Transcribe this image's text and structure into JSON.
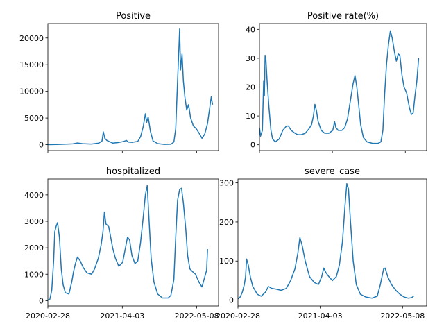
{
  "chart_data": [
    {
      "type": "line",
      "title": "Positive",
      "xlabel": "",
      "ylabel": "",
      "x_range": [
        "2020-02-28",
        "2022-09-02"
      ],
      "x_ticks": [],
      "ylim": [
        -1100,
        22700
      ],
      "y_ticks": [
        0,
        5000,
        10000,
        15000,
        20000
      ],
      "grid": false,
      "points": [
        [
          "2020-02-28",
          0
        ],
        [
          "2020-04-15",
          30
        ],
        [
          "2020-05-25",
          80
        ],
        [
          "2020-07-10",
          150
        ],
        [
          "2020-08-05",
          320
        ],
        [
          "2020-09-01",
          180
        ],
        [
          "2020-10-20",
          120
        ],
        [
          "2020-11-28",
          300
        ],
        [
          "2020-12-15",
          700
        ],
        [
          "2020-12-22",
          2400
        ],
        [
          "2020-12-30",
          1200
        ],
        [
          "2021-01-10",
          800
        ],
        [
          "2021-02-10",
          300
        ],
        [
          "2021-03-10",
          400
        ],
        [
          "2021-04-10",
          600
        ],
        [
          "2021-04-25",
          800
        ],
        [
          "2021-05-05",
          500
        ],
        [
          "2021-05-25",
          450
        ],
        [
          "2021-06-25",
          600
        ],
        [
          "2021-07-10",
          1500
        ],
        [
          "2021-07-25",
          3500
        ],
        [
          "2021-08-05",
          5800
        ],
        [
          "2021-08-12",
          4200
        ],
        [
          "2021-08-20",
          5200
        ],
        [
          "2021-09-01",
          2500
        ],
        [
          "2021-09-15",
          700
        ],
        [
          "2021-10-10",
          200
        ],
        [
          "2021-11-15",
          50
        ],
        [
          "2021-12-20",
          80
        ],
        [
          "2022-01-05",
          500
        ],
        [
          "2022-01-15",
          3000
        ],
        [
          "2022-01-25",
          12000
        ],
        [
          "2022-02-01",
          18000
        ],
        [
          "2022-02-05",
          21700
        ],
        [
          "2022-02-10",
          14000
        ],
        [
          "2022-02-18",
          17000
        ],
        [
          "2022-02-25",
          12000
        ],
        [
          "2022-03-05",
          9000
        ],
        [
          "2022-03-15",
          6500
        ],
        [
          "2022-03-25",
          7500
        ],
        [
          "2022-04-05",
          5000
        ],
        [
          "2022-04-20",
          3500
        ],
        [
          "2022-05-05",
          3000
        ],
        [
          "2022-05-20",
          2200
        ],
        [
          "2022-06-05",
          1200
        ],
        [
          "2022-06-20",
          2000
        ],
        [
          "2022-07-05",
          4000
        ],
        [
          "2022-07-15",
          6500
        ],
        [
          "2022-07-25",
          9000
        ],
        [
          "2022-08-01",
          7500
        ]
      ]
    },
    {
      "type": "line",
      "title": "Positive rate(%)",
      "xlabel": "",
      "ylabel": "",
      "x_range": [
        "2020-02-28",
        "2022-09-02"
      ],
      "x_ticks": [],
      "ylim": [
        -2,
        42
      ],
      "y_ticks": [
        0,
        10,
        20,
        30,
        40
      ],
      "grid": false,
      "points": [
        [
          "2020-02-28",
          6
        ],
        [
          "2020-03-05",
          3
        ],
        [
          "2020-03-15",
          5
        ],
        [
          "2020-03-22",
          22
        ],
        [
          "2020-03-26",
          17
        ],
        [
          "2020-03-30",
          31
        ],
        [
          "2020-04-03",
          30
        ],
        [
          "2020-04-10",
          22
        ],
        [
          "2020-04-20",
          13
        ],
        [
          "2020-05-01",
          5
        ],
        [
          "2020-05-10",
          2
        ],
        [
          "2020-05-25",
          1
        ],
        [
          "2020-06-15",
          2
        ],
        [
          "2020-07-05",
          5
        ],
        [
          "2020-07-25",
          6.5
        ],
        [
          "2020-08-05",
          6.5
        ],
        [
          "2020-08-20",
          5
        ],
        [
          "2020-09-10",
          4
        ],
        [
          "2020-09-25",
          3.5
        ],
        [
          "2020-10-15",
          3.5
        ],
        [
          "2020-11-05",
          4
        ],
        [
          "2020-11-25",
          5.5
        ],
        [
          "2020-12-10",
          7
        ],
        [
          "2020-12-20",
          10
        ],
        [
          "2020-12-28",
          14
        ],
        [
          "2021-01-05",
          12
        ],
        [
          "2021-01-15",
          8
        ],
        [
          "2021-02-01",
          5
        ],
        [
          "2021-02-20",
          4
        ],
        [
          "2021-03-15",
          4
        ],
        [
          "2021-04-05",
          5
        ],
        [
          "2021-04-15",
          8
        ],
        [
          "2021-04-22",
          6
        ],
        [
          "2021-05-05",
          5
        ],
        [
          "2021-05-25",
          5
        ],
        [
          "2021-06-10",
          6
        ],
        [
          "2021-06-25",
          9
        ],
        [
          "2021-07-10",
          15
        ],
        [
          "2021-07-25",
          21
        ],
        [
          "2021-08-05",
          24
        ],
        [
          "2021-08-15",
          20
        ],
        [
          "2021-08-25",
          14
        ],
        [
          "2021-09-05",
          7
        ],
        [
          "2021-09-20",
          2.5
        ],
        [
          "2021-10-10",
          1
        ],
        [
          "2021-11-10",
          0.5
        ],
        [
          "2021-12-10",
          0.5
        ],
        [
          "2021-12-25",
          1
        ],
        [
          "2022-01-05",
          5
        ],
        [
          "2022-01-15",
          18
        ],
        [
          "2022-01-25",
          28
        ],
        [
          "2022-02-05",
          35
        ],
        [
          "2022-02-15",
          39.5
        ],
        [
          "2022-02-25",
          37
        ],
        [
          "2022-03-10",
          32
        ],
        [
          "2022-03-20",
          29
        ],
        [
          "2022-03-30",
          31.5
        ],
        [
          "2022-04-08",
          31
        ],
        [
          "2022-04-20",
          24
        ],
        [
          "2022-05-01",
          20
        ],
        [
          "2022-05-15",
          18
        ],
        [
          "2022-05-30",
          13
        ],
        [
          "2022-06-10",
          10.5
        ],
        [
          "2022-06-20",
          11
        ],
        [
          "2022-06-30",
          17
        ],
        [
          "2022-07-10",
          22
        ],
        [
          "2022-07-20",
          30
        ]
      ]
    },
    {
      "type": "line",
      "title": "hospitalized",
      "xlabel": "",
      "ylabel": "",
      "x_range": [
        "2020-02-28",
        "2022-09-02"
      ],
      "x_ticks": [
        "2020-02-28",
        "2021-04-03",
        "2022-05-08"
      ],
      "ylim": [
        -200,
        4600
      ],
      "y_ticks": [
        0,
        1000,
        2000,
        3000,
        4000
      ],
      "grid": false,
      "points": [
        [
          "2020-02-28",
          20
        ],
        [
          "2020-03-10",
          60
        ],
        [
          "2020-03-20",
          400
        ],
        [
          "2020-03-30",
          1500
        ],
        [
          "2020-04-05",
          2600
        ],
        [
          "2020-04-12",
          2800
        ],
        [
          "2020-04-20",
          2950
        ],
        [
          "2020-04-30",
          2400
        ],
        [
          "2020-05-10",
          1200
        ],
        [
          "2020-05-20",
          600
        ],
        [
          "2020-06-01",
          300
        ],
        [
          "2020-06-20",
          250
        ],
        [
          "2020-07-05",
          700
        ],
        [
          "2020-07-15",
          1100
        ],
        [
          "2020-07-25",
          1400
        ],
        [
          "2020-08-05",
          1650
        ],
        [
          "2020-08-20",
          1500
        ],
        [
          "2020-09-05",
          1250
        ],
        [
          "2020-09-25",
          1050
        ],
        [
          "2020-10-20",
          1000
        ],
        [
          "2020-11-05",
          1200
        ],
        [
          "2020-11-25",
          1600
        ],
        [
          "2020-12-10",
          2100
        ],
        [
          "2020-12-20",
          2600
        ],
        [
          "2020-12-28",
          3350
        ],
        [
          "2021-01-05",
          2900
        ],
        [
          "2021-01-20",
          2800
        ],
        [
          "2021-02-10",
          2000
        ],
        [
          "2021-02-25",
          1600
        ],
        [
          "2021-03-15",
          1300
        ],
        [
          "2021-04-05",
          1450
        ],
        [
          "2021-04-20",
          2000
        ],
        [
          "2021-05-01",
          2400
        ],
        [
          "2021-05-12",
          2300
        ],
        [
          "2021-05-25",
          1700
        ],
        [
          "2021-06-10",
          1400
        ],
        [
          "2021-06-25",
          1500
        ],
        [
          "2021-07-10",
          2200
        ],
        [
          "2021-07-25",
          3200
        ],
        [
          "2021-08-05",
          4000
        ],
        [
          "2021-08-15",
          4350
        ],
        [
          "2021-08-25",
          3000
        ],
        [
          "2021-09-05",
          1600
        ],
        [
          "2021-09-20",
          700
        ],
        [
          "2021-10-10",
          250
        ],
        [
          "2021-11-05",
          100
        ],
        [
          "2021-12-05",
          100
        ],
        [
          "2021-12-20",
          200
        ],
        [
          "2022-01-05",
          800
        ],
        [
          "2022-01-15",
          2400
        ],
        [
          "2022-01-25",
          3800
        ],
        [
          "2022-02-05",
          4200
        ],
        [
          "2022-02-15",
          4250
        ],
        [
          "2022-02-25",
          3700
        ],
        [
          "2022-03-10",
          2700
        ],
        [
          "2022-03-20",
          1700
        ],
        [
          "2022-04-01",
          1200
        ],
        [
          "2022-04-15",
          1100
        ],
        [
          "2022-05-01",
          1000
        ],
        [
          "2022-05-20",
          700
        ],
        [
          "2022-06-05",
          520
        ],
        [
          "2022-06-20",
          900
        ],
        [
          "2022-06-30",
          1150
        ],
        [
          "2022-07-05",
          1950
        ]
      ]
    },
    {
      "type": "line",
      "title": "severe_case",
      "xlabel": "",
      "ylabel": "",
      "x_range": [
        "2020-02-28",
        "2022-09-02"
      ],
      "x_ticks": [
        "2020-02-28",
        "2021-04-03",
        "2022-05-08"
      ],
      "ylim": [
        -15,
        310
      ],
      "y_ticks": [
        0,
        100,
        200,
        300
      ],
      "grid": false,
      "points": [
        [
          "2020-02-28",
          3
        ],
        [
          "2020-03-10",
          8
        ],
        [
          "2020-03-20",
          20
        ],
        [
          "2020-03-30",
          40
        ],
        [
          "2020-04-05",
          60
        ],
        [
          "2020-04-10",
          105
        ],
        [
          "2020-04-18",
          90
        ],
        [
          "2020-04-28",
          60
        ],
        [
          "2020-05-10",
          35
        ],
        [
          "2020-06-01",
          15
        ],
        [
          "2020-06-20",
          10
        ],
        [
          "2020-07-10",
          20
        ],
        [
          "2020-07-25",
          35
        ],
        [
          "2020-08-10",
          30
        ],
        [
          "2020-09-01",
          28
        ],
        [
          "2020-09-25",
          25
        ],
        [
          "2020-10-20",
          30
        ],
        [
          "2020-11-10",
          50
        ],
        [
          "2020-12-01",
          80
        ],
        [
          "2020-12-15",
          120
        ],
        [
          "2020-12-25",
          160
        ],
        [
          "2021-01-05",
          140
        ],
        [
          "2021-01-20",
          100
        ],
        [
          "2021-02-10",
          60
        ],
        [
          "2021-03-05",
          45
        ],
        [
          "2021-03-25",
          40
        ],
        [
          "2021-04-10",
          60
        ],
        [
          "2021-04-20",
          82
        ],
        [
          "2021-05-01",
          70
        ],
        [
          "2021-05-15",
          60
        ],
        [
          "2021-06-01",
          50
        ],
        [
          "2021-06-20",
          60
        ],
        [
          "2021-07-05",
          90
        ],
        [
          "2021-07-20",
          150
        ],
        [
          "2021-08-01",
          240
        ],
        [
          "2021-08-10",
          298
        ],
        [
          "2021-08-18",
          285
        ],
        [
          "2021-08-28",
          200
        ],
        [
          "2021-09-10",
          100
        ],
        [
          "2021-09-25",
          40
        ],
        [
          "2021-10-15",
          15
        ],
        [
          "2021-11-10",
          8
        ],
        [
          "2021-12-10",
          5
        ],
        [
          "2022-01-05",
          10
        ],
        [
          "2022-01-20",
          40
        ],
        [
          "2022-02-05",
          80
        ],
        [
          "2022-02-12",
          82
        ],
        [
          "2022-02-25",
          60
        ],
        [
          "2022-03-15",
          40
        ],
        [
          "2022-04-05",
          25
        ],
        [
          "2022-04-25",
          15
        ],
        [
          "2022-05-15",
          8
        ],
        [
          "2022-06-05",
          5
        ],
        [
          "2022-06-20",
          6
        ],
        [
          "2022-07-01",
          10
        ]
      ]
    }
  ]
}
